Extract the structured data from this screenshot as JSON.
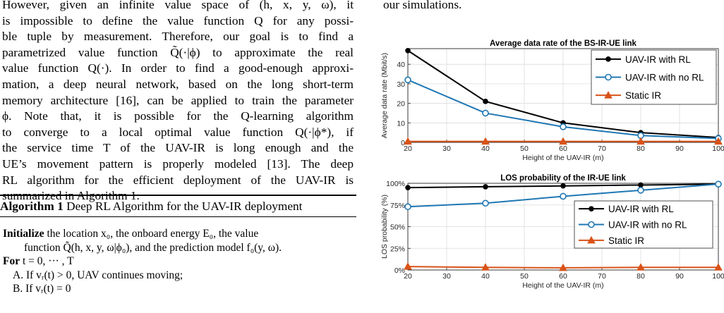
{
  "left_paragraph_lines": [
    "However, given an infinite value space of (h, x, y, ω), it",
    "is impossible to define the value function Q for any possi-",
    "ble tuple by measurement. Therefore, our goal is to find a",
    "parametrized value function Q̃(·|ϕ) to approximate the real",
    "value function Q(·). In order to find a good-enough approxi-",
    "mation, a deep neural network, based on the long short-term",
    "memory architecture [16], can be applied to train the parameter",
    "ϕ. Note that, it is possible for the Q-learning algorithm",
    "to converge to a local optimal value function Q(·|ϕ*), if",
    "the service time T of the UAV-IR is long enough and the",
    "UE’s movement pattern is properly modeled [13]. The deep",
    "RL algorithm for the efficient deployment of the UAV-IR is",
    "summarized in Algorithm 1."
  ],
  "algorithm": {
    "title_bold": "Algorithm 1",
    "title_rest": " Deep RL Algorithm for the UAV-IR deployment",
    "init_keyword": "Initialize",
    "init_line1": " the location x₀, the onboard energy E₀, the value",
    "init_line2": "function Q̃(h, x, y, ω|ϕ₀), and the prediction model f₀(y, ω).",
    "for_keyword": "For",
    "for_rest": " t = 0, ··· , T",
    "step_a": "A. If vᵣ(t) > 0, UAV continues moving;",
    "step_b": "B. If vᵣ(t) = 0"
  },
  "right_top_text": "our simulations.",
  "chart_data": [
    {
      "type": "line",
      "title": "Average data rate of the BS-IR-UE link",
      "xlabel": "Height of the UAV-IR (m)",
      "ylabel": "Average data rate (Mbit/s)",
      "xlim": [
        20,
        100
      ],
      "ylim": [
        0,
        48
      ],
      "xticks": [
        20,
        30,
        40,
        50,
        60,
        70,
        80,
        90,
        100
      ],
      "yticks": [
        0,
        10,
        20,
        30,
        40
      ],
      "ytick_labels": [
        "0",
        "10",
        "20",
        "30",
        "40"
      ],
      "grid": true,
      "legend_position": "top-right",
      "x": [
        20,
        40,
        60,
        80,
        100
      ],
      "series": [
        {
          "name": "UAV-IR with RL",
          "values": [
            47,
            21,
            10,
            5,
            2.5
          ],
          "color": "#000000",
          "marker": "dot"
        },
        {
          "name": "UAV-IR with no RL",
          "values": [
            32,
            15,
            8,
            3.5,
            2
          ],
          "color": "#1f77b4",
          "marker": "circle"
        },
        {
          "name": "Static IR",
          "values": [
            0.5,
            0.5,
            0.5,
            0.5,
            0.5
          ],
          "color": "#d95319",
          "marker": "triangle"
        }
      ]
    },
    {
      "type": "line",
      "title": "LOS probability of the IR-UE link",
      "xlabel": "Height of the UAV-IR (m)",
      "ylabel": "LOS probability (%)",
      "xlim": [
        20,
        100
      ],
      "ylim": [
        0,
        100
      ],
      "xticks": [
        20,
        30,
        40,
        50,
        60,
        70,
        80,
        90,
        100
      ],
      "yticks": [
        0,
        25,
        50,
        75,
        100
      ],
      "ytick_labels": [
        "0%",
        "25%",
        "50%",
        "75%",
        "100%"
      ],
      "grid": true,
      "legend_position": "right",
      "x": [
        20,
        40,
        60,
        80,
        100
      ],
      "series": [
        {
          "name": "UAV-IR with RL",
          "values": [
            95,
            96,
            97,
            98,
            99
          ],
          "color": "#000000",
          "marker": "dot"
        },
        {
          "name": "UAV-IR with no RL",
          "values": [
            73,
            77,
            85,
            92,
            99
          ],
          "color": "#1f77b4",
          "marker": "circle"
        },
        {
          "name": "Static IR",
          "values": [
            4,
            3,
            2.5,
            3,
            3
          ],
          "color": "#d95319",
          "marker": "triangle"
        }
      ]
    }
  ]
}
